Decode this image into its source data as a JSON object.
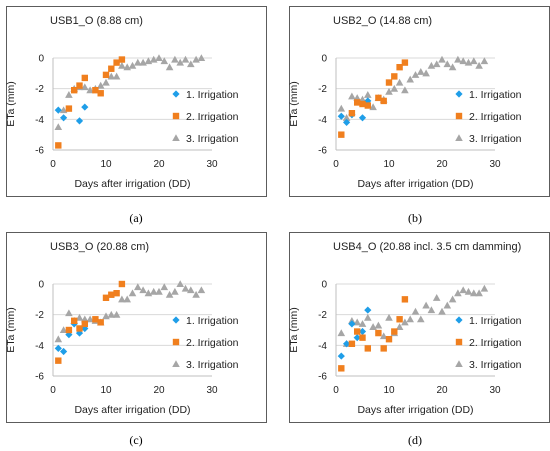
{
  "colors": {
    "series_1": "#1f9ee8",
    "series_2": "#f07f1e",
    "series_3": "#a6a6a6",
    "gridline": "#d9d9d9",
    "frame": "#5c5c5c"
  },
  "chart_data": [
    {
      "type": "scatter",
      "panel_label": "(a)",
      "title": "USB1_O (8.88 cm)",
      "xlabel": "Days after irrigation (DD)",
      "ylabel": "ETa (mm)",
      "xlim": [
        0,
        30
      ],
      "ylim": [
        -6,
        0
      ],
      "xticks": [
        0,
        10,
        20,
        30
      ],
      "yticks": [
        0,
        -2,
        -4,
        -6
      ],
      "grid": "horizontal",
      "legend_position": "right",
      "series": [
        {
          "name": "1.  Irrigation",
          "marker": "diamond",
          "x": [
            1,
            2,
            5,
            6
          ],
          "y": [
            -3.4,
            -3.9,
            -4.1,
            -3.2
          ]
        },
        {
          "name": "2.  Irrigation",
          "marker": "square",
          "x": [
            1,
            3,
            4,
            5,
            6,
            8,
            9,
            10,
            11,
            12,
            13
          ],
          "y": [
            -5.7,
            -3.3,
            -2.1,
            -1.8,
            -1.3,
            -2.1,
            -2.3,
            -1.1,
            -0.7,
            -0.3,
            -0.1
          ]
        },
        {
          "name": "3.  Irrigation",
          "marker": "triangle",
          "x": [
            1,
            2,
            3,
            4,
            5,
            6,
            7,
            8,
            9,
            10,
            11,
            12,
            13,
            14,
            15,
            16,
            17,
            18,
            19,
            20,
            21,
            22,
            23,
            24,
            25,
            26,
            27,
            28
          ],
          "y": [
            -4.5,
            -3.4,
            -2.4,
            -2.0,
            -1.9,
            -1.9,
            -2.1,
            -2.0,
            -1.8,
            -1.6,
            -1.2,
            -1.2,
            -0.5,
            -0.6,
            -0.5,
            -0.3,
            -0.3,
            -0.2,
            -0.1,
            0.0,
            -0.2,
            -0.6,
            -0.1,
            -0.3,
            -0.1,
            -0.4,
            -0.1,
            0.0
          ]
        }
      ]
    },
    {
      "type": "scatter",
      "panel_label": "(b)",
      "title": "USB2_O (14.88 cm)",
      "xlabel": "Days after irrigation (DD)",
      "ylabel": "ETa (mm)",
      "xlim": [
        0,
        30
      ],
      "ylim": [
        -6,
        0
      ],
      "xticks": [
        0,
        10,
        20,
        30
      ],
      "yticks": [
        0,
        -2,
        -4,
        -6
      ],
      "grid": "horizontal",
      "legend_position": "right",
      "series": [
        {
          "name": "1.  Irrigation",
          "marker": "diamond",
          "x": [
            1,
            2,
            3,
            5,
            6
          ],
          "y": [
            -3.8,
            -4.2,
            -3.7,
            -3.9,
            -2.8
          ]
        },
        {
          "name": "2.  Irrigation",
          "marker": "square",
          "x": [
            1,
            3,
            4,
            5,
            6,
            8,
            9,
            10,
            11,
            12,
            13
          ],
          "y": [
            -5.0,
            -3.6,
            -2.9,
            -3.0,
            -3.1,
            -2.6,
            -2.8,
            -1.6,
            -1.2,
            -0.6,
            -0.3
          ]
        },
        {
          "name": "3.  Irrigation",
          "marker": "triangle",
          "x": [
            1,
            2,
            3,
            4,
            5,
            6,
            7,
            8,
            9,
            10,
            11,
            12,
            13,
            14,
            15,
            16,
            17,
            18,
            19,
            20,
            21,
            22,
            23,
            24,
            25,
            26,
            27,
            28
          ],
          "y": [
            -3.3,
            -3.9,
            -2.5,
            -2.6,
            -2.7,
            -2.4,
            -3.2,
            -2.6,
            -2.7,
            -2.2,
            -2.0,
            -1.6,
            -2.1,
            -1.4,
            -1.1,
            -0.9,
            -1.0,
            -0.5,
            -0.4,
            -0.1,
            -0.4,
            -0.6,
            -0.1,
            -0.2,
            -0.3,
            -0.2,
            -0.5,
            -0.2
          ]
        }
      ]
    },
    {
      "type": "scatter",
      "panel_label": "(c)",
      "title": "USB3_O (20.88 cm)",
      "xlabel": "Days after irrigation (DD)",
      "ylabel": "ETa (mm)",
      "xlim": [
        0,
        30
      ],
      "ylim": [
        -6,
        0
      ],
      "xticks": [
        0,
        10,
        20,
        30
      ],
      "yticks": [
        0,
        -2,
        -4,
        -6
      ],
      "grid": "horizontal",
      "legend_position": "right",
      "series": [
        {
          "name": "1.  Irrigation",
          "marker": "diamond",
          "x": [
            1,
            2,
            3,
            4,
            5,
            6
          ],
          "y": [
            -4.2,
            -4.4,
            -3.3,
            -2.6,
            -3.2,
            -2.9
          ]
        },
        {
          "name": "2.  Irrigation",
          "marker": "square",
          "x": [
            1,
            3,
            4,
            5,
            6,
            8,
            9,
            10,
            11,
            12,
            13
          ],
          "y": [
            -5.0,
            -3.0,
            -2.4,
            -2.9,
            -2.6,
            -2.3,
            -2.5,
            -0.9,
            -0.7,
            -0.6,
            0.0
          ]
        },
        {
          "name": "3.  Irrigation",
          "marker": "triangle",
          "x": [
            1,
            2,
            3,
            4,
            5,
            6,
            7,
            8,
            9,
            10,
            11,
            12,
            13,
            14,
            15,
            16,
            17,
            18,
            19,
            20,
            21,
            22,
            23,
            24,
            25,
            26,
            27,
            28
          ],
          "y": [
            -3.6,
            -3.0,
            -1.9,
            -2.4,
            -2.2,
            -2.3,
            -2.3,
            -2.4,
            -2.5,
            -2.1,
            -2.0,
            -2.0,
            -1.0,
            -1.0,
            -0.6,
            -0.2,
            -0.4,
            -0.6,
            -0.5,
            -0.5,
            -0.2,
            -0.7,
            -0.5,
            0.0,
            -0.3,
            -0.4,
            -0.7,
            -0.4
          ]
        }
      ]
    },
    {
      "type": "scatter",
      "panel_label": "(d)",
      "title": "USB4_O (20.88 incl. 3.5 cm damming)",
      "xlabel": "Days after irrigation (DD)",
      "ylabel": "ETa (mm)",
      "xlim": [
        0,
        30
      ],
      "ylim": [
        -6,
        0
      ],
      "xticks": [
        0,
        10,
        20,
        30
      ],
      "yticks": [
        0,
        -2,
        -4,
        -6
      ],
      "grid": "horizontal",
      "legend_position": "right",
      "series": [
        {
          "name": "1.  Irrigation",
          "marker": "diamond",
          "x": [
            1,
            2,
            3,
            4,
            5,
            6
          ],
          "y": [
            -4.7,
            -3.9,
            -2.6,
            -3.5,
            -3.1,
            -1.7
          ]
        },
        {
          "name": "2.  Irrigation",
          "marker": "square",
          "x": [
            1,
            3,
            4,
            5,
            6,
            8,
            9,
            10,
            11,
            12,
            13
          ],
          "y": [
            -5.5,
            -3.9,
            -3.1,
            -3.5,
            -4.2,
            -3.2,
            -4.2,
            -3.6,
            -3.1,
            -2.3,
            -1.0
          ]
        },
        {
          "name": "3.  Irrigation",
          "marker": "triangle",
          "x": [
            1,
            2,
            3,
            4,
            5,
            6,
            7,
            8,
            9,
            10,
            11,
            12,
            13,
            14,
            15,
            16,
            17,
            18,
            19,
            20,
            21,
            22,
            23,
            24,
            25,
            26,
            27,
            28
          ],
          "y": [
            -3.2,
            -3.9,
            -2.4,
            -2.5,
            -2.6,
            -2.2,
            -2.8,
            -2.7,
            -3.4,
            -2.2,
            -3.2,
            -2.8,
            -2.5,
            -2.3,
            -1.8,
            -2.3,
            -1.4,
            -1.7,
            -0.9,
            -1.8,
            -1.4,
            -1.0,
            -0.6,
            -0.4,
            -0.5,
            -0.6,
            -0.6,
            -0.3
          ]
        }
      ]
    }
  ]
}
